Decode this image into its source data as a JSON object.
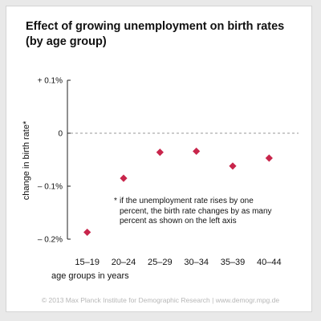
{
  "chart_data": {
    "type": "scatter",
    "title_line1": "Effect of growing unemployment on birth rates",
    "title_line2": "(by age group)",
    "ylabel": "change in birth rate*",
    "xlabel": "age groups in years",
    "categories": [
      "15–19",
      "20–24",
      "25–29",
      "30–34",
      "35–39",
      "40–44"
    ],
    "values": [
      -0.187,
      -0.085,
      -0.036,
      -0.034,
      -0.062,
      -0.047
    ],
    "ylim": [
      -0.2,
      0.1
    ],
    "yticks": [
      {
        "value": 0.1,
        "label": "+ 0.1%"
      },
      {
        "value": 0,
        "label": "0"
      },
      {
        "value": -0.1,
        "label": "– 0.1%"
      },
      {
        "value": -0.2,
        "label": "– 0.2%"
      }
    ],
    "reference_line": 0,
    "marker": "diamond",
    "marker_color": "#c8254b",
    "note_star": "*",
    "note": "if the unemployment rate rises by one percent, the birth rate changes by as many percent as shown on the left axis"
  },
  "footer": "© 2013 Max Planck Institute for Demographic Research | www.demogr.mpg.de"
}
